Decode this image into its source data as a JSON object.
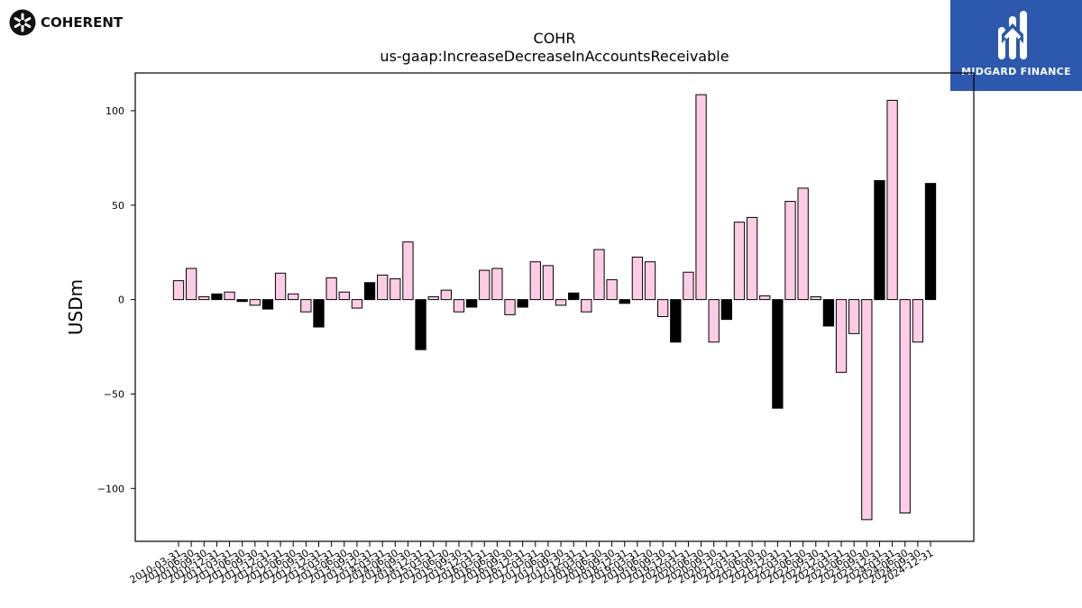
{
  "brand": {
    "left_logo_text": "COHERENT",
    "right_logo_text": "MIDGARD FINANCE"
  },
  "colors": {
    "positive": "#ffcce6",
    "negative": "#000000",
    "axis": "#000000",
    "right_logo_bg": "#2c58ad"
  },
  "chart_data": {
    "type": "bar",
    "title": "COHR",
    "subtitle": "us-gaap:IncreaseDecreaseInAccountsReceivable",
    "ylabel": "USDm",
    "xlabel": "",
    "ylim": [
      -128,
      120
    ],
    "yticks": [
      -100,
      -50,
      0,
      50,
      100
    ],
    "ytick_labels": [
      "−100",
      "−50",
      "0",
      "50",
      "100"
    ],
    "grid": false,
    "legend": "none",
    "categories": [
      "2010-03-31",
      "2010-06-30",
      "2010-09-30",
      "2010-12-31",
      "2011-03-31",
      "2011-06-30",
      "2011-09-30",
      "2011-12-31",
      "2012-03-31",
      "2012-06-30",
      "2012-09-30",
      "2012-12-31",
      "2013-03-31",
      "2013-06-30",
      "2013-09-30",
      "2013-12-31",
      "2014-03-31",
      "2014-06-30",
      "2014-09-30",
      "2014-12-31",
      "2015-03-31",
      "2015-06-30",
      "2015-09-30",
      "2015-12-31",
      "2016-03-31",
      "2016-06-30",
      "2016-09-30",
      "2016-12-31",
      "2017-03-31",
      "2017-06-30",
      "2017-09-30",
      "2017-12-31",
      "2018-03-31",
      "2018-06-30",
      "2018-09-30",
      "2018-12-31",
      "2019-03-31",
      "2019-06-30",
      "2019-09-30",
      "2019-12-31",
      "2020-03-31",
      "2020-06-30",
      "2020-09-30",
      "2020-12-31",
      "2021-03-31",
      "2021-06-30",
      "2021-09-30",
      "2021-12-31",
      "2022-03-31",
      "2022-06-30",
      "2022-09-30",
      "2022-12-31",
      "2023-03-31",
      "2023-06-30",
      "2023-09-30",
      "2023-12-31",
      "2024-03-31",
      "2024-06-30",
      "2024-09-30",
      "2024-12-31"
    ],
    "values": [
      10,
      16.5,
      1.5,
      3,
      4,
      -1,
      -3,
      -5,
      14,
      3,
      -6.5,
      -14.5,
      11.5,
      4,
      -4.5,
      9,
      13,
      11,
      30.5,
      -26.5,
      1.5,
      5,
      -6.5,
      -4,
      15.5,
      16.5,
      -8,
      -4,
      20,
      18,
      -3,
      3.5,
      -6.5,
      26.5,
      10.5,
      -2,
      22.5,
      20,
      -9,
      -22.5,
      14.5,
      108.5,
      -22.5,
      -10.5,
      41,
      43.5,
      2,
      -57.5,
      52,
      59,
      1.5,
      -14,
      -38.5,
      -18,
      -116.5,
      63,
      105.5,
      -113,
      -22.5,
      61.5
    ],
    "bar_colors": [
      "#ffcce6",
      "#ffcce6",
      "#ffcce6",
      "#000000",
      "#ffcce6",
      "#000000",
      "#ffcce6",
      "#000000",
      "#ffcce6",
      "#ffcce6",
      "#ffcce6",
      "#000000",
      "#ffcce6",
      "#ffcce6",
      "#ffcce6",
      "#000000",
      "#ffcce6",
      "#ffcce6",
      "#ffcce6",
      "#000000",
      "#ffcce6",
      "#ffcce6",
      "#ffcce6",
      "#000000",
      "#ffcce6",
      "#ffcce6",
      "#ffcce6",
      "#000000",
      "#ffcce6",
      "#ffcce6",
      "#ffcce6",
      "#000000",
      "#ffcce6",
      "#ffcce6",
      "#ffcce6",
      "#000000",
      "#ffcce6",
      "#ffcce6",
      "#ffcce6",
      "#000000",
      "#ffcce6",
      "#ffcce6",
      "#ffcce6",
      "#000000",
      "#ffcce6",
      "#ffcce6",
      "#ffcce6",
      "#000000",
      "#ffcce6",
      "#ffcce6",
      "#ffcce6",
      "#000000",
      "#ffcce6",
      "#ffcce6",
      "#ffcce6",
      "#000000",
      "#ffcce6",
      "#ffcce6",
      "#ffcce6",
      "#000000"
    ]
  }
}
